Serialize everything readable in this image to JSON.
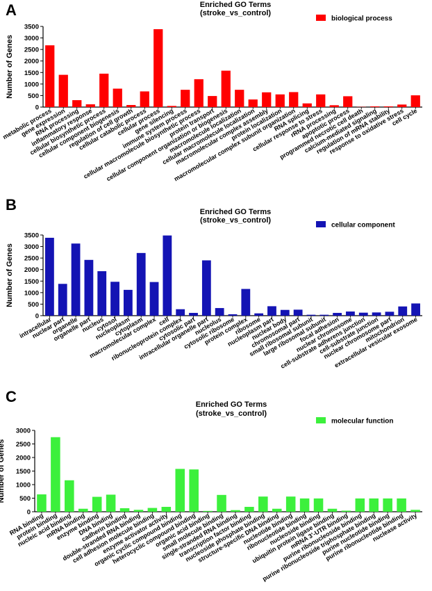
{
  "chart_data": [
    {
      "panel": "A",
      "type": "bar",
      "title": "Enriched GO Terms",
      "subtitle": "(stroke_vs_control)",
      "ylabel": "Number of Genes",
      "xlabel": "",
      "ylim": [
        0,
        3500
      ],
      "yticks": [
        0,
        500,
        1000,
        1500,
        2000,
        2500,
        3000,
        3500
      ],
      "grid": false,
      "legend": "biological process",
      "legend_position": "top-right",
      "color": "#ff0000",
      "categories": [
        "metabolic process",
        "gene expression",
        "RNA processing",
        "inflammatory response",
        "cellular biosynthetic process",
        "cellular component biogenesis",
        "regulation of cell growth",
        "cellular catabolic process",
        "cellular process",
        "gene silencing",
        "immune system process",
        "cellular macromolecule biosynthetic process",
        "protein transport",
        "cellular component organization or biogenesis",
        "macromolecule localization",
        "cellular macromolecule localization",
        "macromolecular complex assembly",
        "protein localization",
        "macromolecular complex subunit organization",
        "RNA splicing",
        "cellular response to stress",
        "rRNA processing",
        "apoptotic process",
        "programmed necrotic cell death",
        "calcium-mediated signaling",
        "regulation of mRNA stability",
        "response to oxidative stress",
        "cell cycle"
      ],
      "values": [
        2680,
        1400,
        300,
        120,
        1450,
        800,
        90,
        680,
        3380,
        50,
        750,
        1210,
        480,
        1580,
        750,
        330,
        640,
        550,
        650,
        160,
        550,
        80,
        470,
        10,
        30,
        30,
        110,
        510
      ]
    },
    {
      "panel": "B",
      "type": "bar",
      "title": "Enriched GO Terms",
      "subtitle": "(stroke_vs_control)",
      "ylabel": "Number of Genes",
      "xlabel": "",
      "ylim": [
        0,
        3500
      ],
      "yticks": [
        0,
        500,
        1000,
        1500,
        2000,
        2500,
        3000,
        3500
      ],
      "grid": false,
      "legend": "cellular component",
      "legend_position": "top-right",
      "color": "#1414b4",
      "categories": [
        "intracellular",
        "nuclear part",
        "organelle",
        "organelle part",
        "nucleus",
        "cytosol",
        "nucleoplasm",
        "cytoplasm",
        "macromolecular complex",
        "cell",
        "ribonucleoprotein complex",
        "cytosolic part",
        "intracellular organelle part",
        "nucleolus",
        "cytosolic ribosome",
        "protein complex",
        "ribosome",
        "nucleoplasm part",
        "nuclear body",
        "chromosomal part",
        "small ribosomal subunit",
        "large ribosomal subunit",
        "focal adhesion",
        "nuclear chromosome",
        "cell-substrate adherens junction",
        "cell-substrate junction",
        "nuclear chromosome part",
        "mitochondrion",
        "extracellular vesicular exosome"
      ],
      "values": [
        3380,
        1380,
        3130,
        2420,
        1930,
        1470,
        1120,
        2720,
        1460,
        3480,
        280,
        120,
        2400,
        330,
        60,
        1160,
        100,
        410,
        250,
        260,
        40,
        40,
        120,
        180,
        130,
        140,
        170,
        400,
        530
      ]
    },
    {
      "panel": "C",
      "type": "bar",
      "title": "Enriched GO Terms",
      "subtitle": "(stroke_vs_control)",
      "ylabel": "Number of Genes",
      "xlabel": "",
      "ylim": [
        0,
        3000
      ],
      "yticks": [
        0,
        500,
        1000,
        1500,
        2000,
        2500,
        3000
      ],
      "grid": false,
      "legend": "molecular function",
      "legend_position": "top-right",
      "color": "#3cf03c",
      "categories": [
        "RNA binding",
        "protein binding",
        "nucleic acid binding",
        "mRNA binding",
        "enzyme binding",
        "DNA binding",
        "cadherin binding",
        "double-stranded RNA binding",
        "cell adhesion molecule binding",
        "enzyme activator activity",
        "organic cyclic compound binding",
        "heterocyclic compound binding",
        "organic acid binding",
        "small molecule binding",
        "single-stranded RNA binding",
        "transcription factor binding",
        "nucleoside phosphate binding",
        "structure-specific DNA binding",
        "nucleotide binding",
        "ribonucleotide binding",
        "nucleoside binding",
        "ubiquitin protein ligase binding",
        "mRNA 3'-UTR binding",
        "purine ribonucleoside binding",
        "purine ribonucleoside triphosphate binding",
        "purine nucleotide binding",
        "purine ribonucleotide binding",
        "nuclease activity"
      ],
      "values": [
        640,
        2750,
        1160,
        110,
        550,
        630,
        130,
        70,
        140,
        180,
        1580,
        1560,
        30,
        620,
        60,
        180,
        560,
        110,
        560,
        490,
        490,
        110,
        40,
        490,
        490,
        490,
        490,
        70
      ]
    }
  ]
}
